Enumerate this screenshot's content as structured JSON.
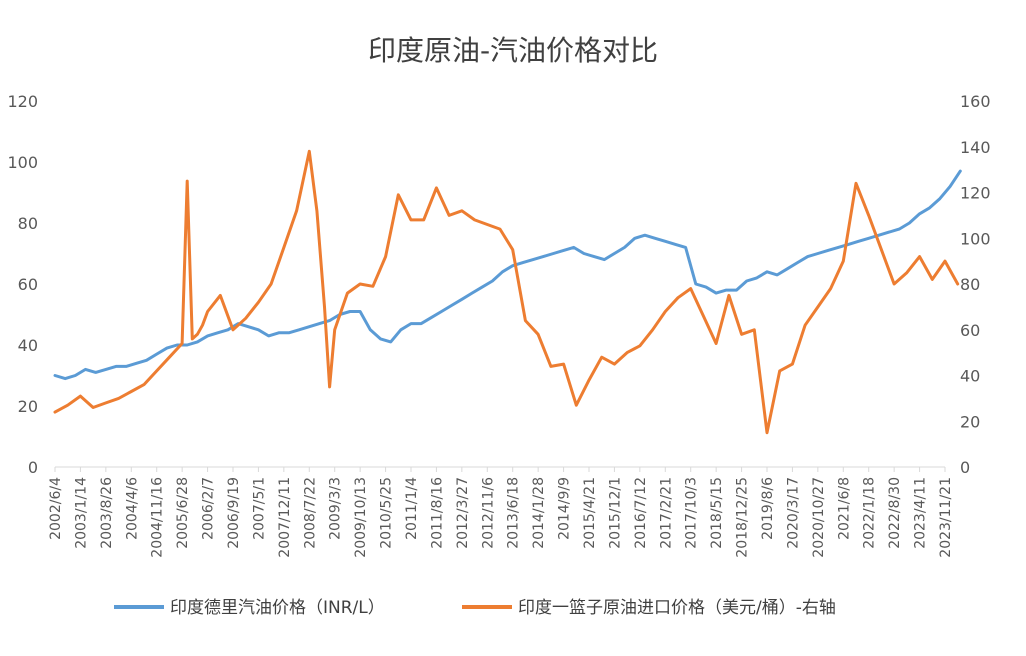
{
  "chart_data": {
    "type": "line",
    "title": "印度原油-汽油价格对比",
    "x_tick_labels": [
      "2002/6/4",
      "2003/1/14",
      "2003/8/26",
      "2004/4/6",
      "2004/11/16",
      "2005/6/28",
      "2006/2/7",
      "2006/9/19",
      "2007/5/1",
      "2007/12/11",
      "2008/7/22",
      "2009/3/3",
      "2009/10/13",
      "2010/5/25",
      "2011/1/4",
      "2011/8/16",
      "2012/3/27",
      "2012/11/6",
      "2013/6/18",
      "2014/1/28",
      "2014/9/9",
      "2015/4/21",
      "2015/12/1",
      "2016/7/12",
      "2017/2/21",
      "2017/10/3",
      "2018/5/15",
      "2018/12/25",
      "2019/8/6",
      "2020/3/17",
      "2020/10/27",
      "2021/6/8",
      "2022/1/18",
      "2022/8/30",
      "2023/4/11",
      "2023/11/21"
    ],
    "left_axis": {
      "ticks": [
        0,
        20,
        40,
        60,
        80,
        100,
        120
      ],
      "ylim": [
        0,
        120
      ]
    },
    "right_axis": {
      "ticks": [
        0,
        20,
        40,
        60,
        80,
        100,
        120,
        140,
        160
      ],
      "ylim": [
        0,
        160
      ]
    },
    "grid": false,
    "legend_position": "bottom",
    "series": [
      {
        "name": "印度德里汽油价格（INR/L）",
        "axis": "left",
        "color": "#5B9BD5",
        "x": [
          0.0,
          0.4,
          0.8,
          1.2,
          1.6,
          2.0,
          2.4,
          2.8,
          3.2,
          3.6,
          4.0,
          4.4,
          4.8,
          5.2,
          5.6,
          6.0,
          6.4,
          6.8,
          7.2,
          7.6,
          8.0,
          8.4,
          8.8,
          9.2,
          9.6,
          10.0,
          10.4,
          10.8,
          11.2,
          11.6,
          12.0,
          12.4,
          12.8,
          13.2,
          13.6,
          14.0,
          14.4,
          14.8,
          15.2,
          15.6,
          16.0,
          16.4,
          16.8,
          17.2,
          17.6,
          18.0,
          18.4,
          18.8,
          19.2,
          19.6,
          20.0,
          20.4,
          20.8,
          21.2,
          21.6,
          22.0,
          22.4,
          22.8,
          23.2,
          23.6,
          24.0,
          24.4,
          24.8,
          25.2,
          25.6,
          26.0,
          26.4,
          26.8,
          27.2,
          27.6,
          28.0,
          28.4,
          28.8,
          29.2,
          29.6,
          30.0,
          30.4,
          30.8,
          31.2,
          31.6,
          32.0,
          32.4,
          32.8,
          33.2,
          33.6,
          34.0,
          34.4,
          34.8,
          35.2,
          35.6
        ],
        "values": [
          30,
          29,
          30,
          32,
          31,
          32,
          33,
          33,
          34,
          35,
          37,
          39,
          40,
          40,
          41,
          43,
          44,
          45,
          47,
          46,
          45,
          43,
          44,
          44,
          45,
          46,
          47,
          48,
          50,
          51,
          51,
          45,
          42,
          41,
          45,
          47,
          47,
          49,
          51,
          53,
          55,
          57,
          59,
          61,
          64,
          66,
          67,
          68,
          69,
          70,
          71,
          72,
          70,
          69,
          68,
          70,
          72,
          75,
          76,
          75,
          74,
          73,
          72,
          60,
          59,
          57,
          58,
          58,
          61,
          62,
          64,
          63,
          65,
          67,
          69,
          70,
          71,
          72,
          73,
          74,
          75,
          76,
          77,
          78,
          80,
          83,
          85,
          88,
          92,
          97
        ]
      },
      {
        "name": "印度一篮子原油进口价格（美元/桶）-右轴",
        "axis": "right",
        "color": "#ED7D31",
        "x": [
          0.0,
          0.5,
          1.0,
          1.5,
          2.0,
          2.5,
          3.0,
          3.5,
          4.0,
          4.5,
          5.0,
          5.2,
          5.4,
          5.6,
          5.8,
          6.0,
          6.5,
          7.0,
          7.5,
          8.0,
          8.5,
          9.0,
          9.5,
          10.0,
          10.3,
          10.6,
          10.8,
          11.0,
          11.5,
          12.0,
          12.5,
          13.0,
          13.5,
          14.0,
          14.5,
          15.0,
          15.5,
          16.0,
          16.5,
          17.0,
          17.5,
          18.0,
          18.5,
          19.0,
          19.5,
          20.0,
          20.5,
          21.0,
          21.5,
          22.0,
          22.5,
          23.0,
          23.5,
          24.0,
          24.5,
          25.0,
          25.5,
          26.0,
          26.5,
          27.0,
          27.5,
          28.0,
          28.5,
          29.0,
          29.5,
          30.0,
          30.5,
          31.0,
          31.5,
          32.0,
          32.5,
          33.0,
          33.5,
          34.0,
          34.5,
          35.0,
          35.5
        ],
        "values": [
          24,
          27,
          31,
          26,
          28,
          30,
          33,
          36,
          42,
          48,
          54,
          125,
          56,
          58,
          62,
          68,
          75,
          60,
          65,
          72,
          80,
          96,
          112,
          138,
          112,
          70,
          35,
          60,
          76,
          80,
          79,
          92,
          119,
          108,
          108,
          122,
          110,
          112,
          108,
          106,
          104,
          95,
          64,
          58,
          44,
          45,
          27,
          38,
          48,
          45,
          50,
          53,
          60,
          68,
          74,
          78,
          66,
          54,
          75,
          58,
          60,
          15,
          42,
          45,
          62,
          70,
          78,
          90,
          124,
          110,
          95,
          80,
          85,
          92,
          82,
          90,
          80
        ]
      }
    ]
  }
}
